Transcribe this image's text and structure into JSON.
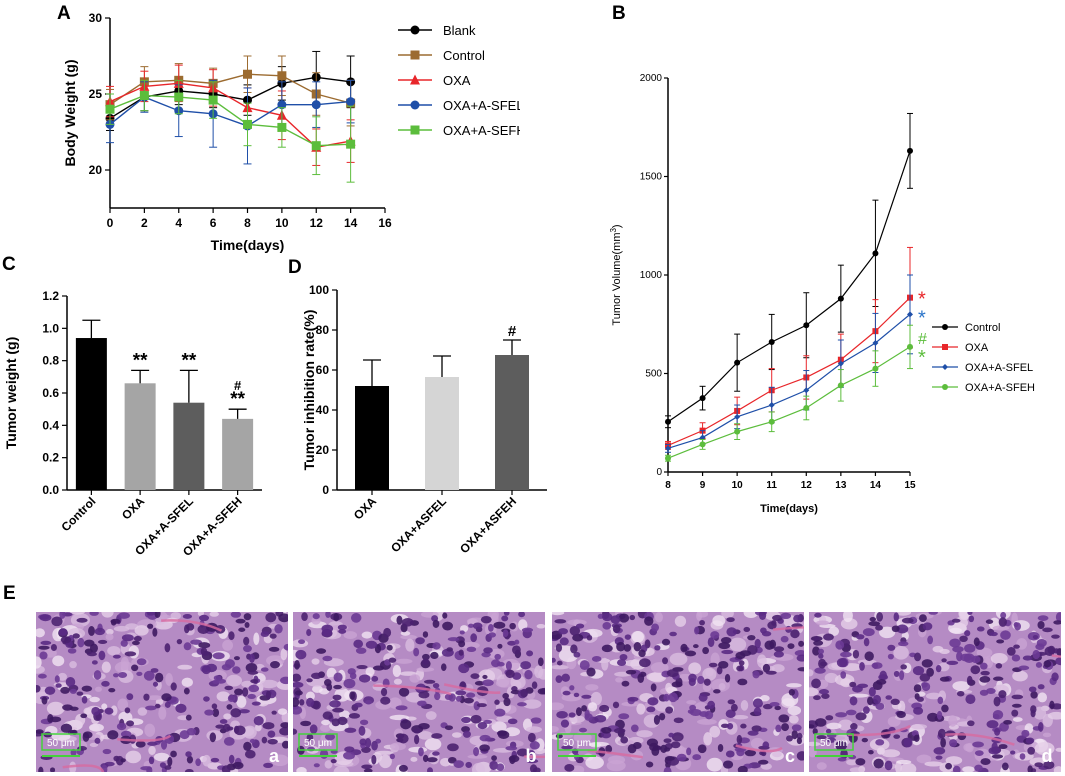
{
  "panel_labels": {
    "a": "A",
    "b": "B",
    "c": "C",
    "d": "D",
    "e": "E"
  },
  "chart_data": [
    {
      "id": "A",
      "type": "line",
      "xlabel": "Time(days)",
      "ylabel": "Body Weight (g)",
      "xlim": [
        0,
        16
      ],
      "ylim": [
        17.5,
        30
      ],
      "xticks": [
        0,
        2,
        4,
        6,
        8,
        10,
        12,
        14,
        16
      ],
      "yticks": [
        20,
        25,
        30
      ],
      "legend_position": "right",
      "series": [
        {
          "name": "Blank",
          "color": "#000000",
          "marker": "circle",
          "x": [
            0,
            2,
            4,
            6,
            8,
            10,
            12,
            14
          ],
          "y": [
            23.4,
            24.8,
            25.2,
            25.0,
            24.6,
            25.7,
            26.1,
            25.8
          ],
          "err": [
            0.8,
            0.9,
            0.9,
            0.9,
            1.0,
            1.1,
            1.7,
            1.7
          ]
        },
        {
          "name": "Control",
          "color": "#9c6b30",
          "marker": "square",
          "x": [
            0,
            2,
            4,
            6,
            8,
            10,
            12,
            14
          ],
          "y": [
            24.3,
            25.8,
            25.9,
            25.7,
            26.3,
            26.2,
            25.0,
            24.4
          ],
          "err": [
            1.0,
            1.0,
            1.1,
            1.0,
            1.2,
            1.3,
            1.4,
            1.5
          ]
        },
        {
          "name": "OXA",
          "color": "#e8262a",
          "marker": "triangle",
          "x": [
            0,
            2,
            4,
            6,
            8,
            10,
            12,
            14
          ],
          "y": [
            24.5,
            25.5,
            25.7,
            25.4,
            24.1,
            23.6,
            21.5,
            21.9
          ],
          "err": [
            1.0,
            1.0,
            1.2,
            1.2,
            1.3,
            1.6,
            1.2,
            1.4
          ]
        },
        {
          "name": "OXA+A-SFEL",
          "color": "#1f4fa8",
          "marker": "circle",
          "x": [
            0,
            2,
            4,
            6,
            8,
            10,
            12,
            14
          ],
          "y": [
            23.0,
            24.8,
            23.9,
            23.7,
            22.9,
            24.3,
            24.3,
            24.5
          ],
          "err": [
            1.2,
            1.0,
            1.7,
            2.2,
            2.5,
            1.5,
            1.5,
            1.4
          ]
        },
        {
          "name": "OXA+A-SEFH",
          "color": "#5cbd3c",
          "marker": "square",
          "x": [
            0,
            2,
            4,
            6,
            8,
            10,
            12,
            14
          ],
          "y": [
            24.0,
            24.9,
            24.8,
            24.6,
            23.0,
            22.8,
            21.6,
            21.7
          ],
          "err": [
            1.0,
            1.0,
            1.1,
            1.2,
            1.4,
            1.3,
            1.9,
            2.5
          ]
        }
      ]
    },
    {
      "id": "B",
      "type": "line",
      "xlabel": "Time(days)",
      "ylabel": "Tumor Volume(mm",
      "ylabel_sup": "3",
      "ylabel_tail": ")",
      "xlim": [
        8,
        15
      ],
      "ylim": [
        0,
        2000
      ],
      "xticks": [
        8,
        9,
        10,
        11,
        12,
        13,
        14,
        15
      ],
      "yticks": [
        0,
        500,
        1000,
        1500,
        2000
      ],
      "legend_position": "right",
      "series": [
        {
          "name": "Control",
          "color": "#000000",
          "marker": "circle",
          "x": [
            8,
            9,
            10,
            11,
            12,
            13,
            14,
            15
          ],
          "y": [
            255,
            375,
            555,
            660,
            745,
            880,
            1110,
            1630
          ],
          "err": [
            30,
            60,
            145,
            140,
            165,
            170,
            270,
            190
          ]
        },
        {
          "name": "OXA",
          "color": "#e8262a",
          "marker": "square",
          "x": [
            8,
            9,
            10,
            11,
            12,
            13,
            14,
            15
          ],
          "y": [
            135,
            210,
            310,
            415,
            480,
            570,
            715,
            885
          ],
          "err": [
            20,
            40,
            70,
            110,
            110,
            130,
            160,
            255
          ]
        },
        {
          "name": "OXA+A-SFEL",
          "color": "#1f4fa8",
          "marker": "diamond",
          "x": [
            8,
            9,
            10,
            11,
            12,
            13,
            14,
            15
          ],
          "y": [
            120,
            175,
            280,
            340,
            415,
            550,
            655,
            800
          ],
          "err": [
            20,
            35,
            60,
            90,
            100,
            120,
            150,
            200
          ]
        },
        {
          "name": "OXA+A-SFEH",
          "color": "#5cbd3c",
          "marker": "circle",
          "x": [
            8,
            9,
            10,
            11,
            12,
            13,
            14,
            15
          ],
          "y": [
            70,
            140,
            205,
            255,
            325,
            440,
            525,
            635
          ],
          "err": [
            15,
            25,
            40,
            50,
            60,
            80,
            90,
            110
          ]
        }
      ],
      "annotations": [
        {
          "text": "*",
          "color": "#e8262a",
          "near": "OXA"
        },
        {
          "text": "*",
          "color": "#2b74c9",
          "near": "OXA+A-SFEL"
        },
        {
          "text": "#",
          "color": "#5cbd3c",
          "near": "OXA+A-SFEH"
        },
        {
          "text": "*",
          "color": "#5cbd3c",
          "near": "OXA+A-SFEH"
        }
      ]
    },
    {
      "id": "C",
      "type": "bar",
      "ylabel": "Tumor weight (g)",
      "ylim": [
        0,
        1.2
      ],
      "yticks": [
        0.0,
        0.2,
        0.4,
        0.6,
        0.8,
        1.0,
        1.2
      ],
      "categories": [
        "Control",
        "OXA",
        "OXA+A-SFEL",
        "OXA+A-SFEH"
      ],
      "values": [
        0.94,
        0.66,
        0.54,
        0.44
      ],
      "errors": [
        0.11,
        0.08,
        0.2,
        0.06
      ],
      "colors": [
        "#000000",
        "#a5a5a5",
        "#5d5d5d",
        "#a5a5a5"
      ],
      "labels": [
        "",
        "**",
        "**",
        "**"
      ],
      "labels2": [
        "",
        "",
        "",
        "#"
      ]
    },
    {
      "id": "D",
      "type": "bar",
      "ylabel": "Tumor inhibition rate(%)",
      "ylim": [
        0,
        100
      ],
      "yticks": [
        0,
        20,
        40,
        60,
        80,
        100
      ],
      "categories": [
        "OXA",
        "OXA+ASFEL",
        "OXA+ASFEH"
      ],
      "values": [
        52,
        56.5,
        67.5
      ],
      "errors": [
        13,
        10.5,
        7.5
      ],
      "colors": [
        "#000000",
        "#d5d5d5",
        "#5d5d5d"
      ],
      "labels": [
        "",
        "",
        "#"
      ]
    }
  ],
  "histology": {
    "panels": [
      {
        "letter": "a",
        "scale": "50 μm"
      },
      {
        "letter": "b",
        "scale": "50 μm"
      },
      {
        "letter": "c",
        "scale": "50 μm"
      },
      {
        "letter": "d",
        "scale": "50 μm"
      }
    ]
  }
}
